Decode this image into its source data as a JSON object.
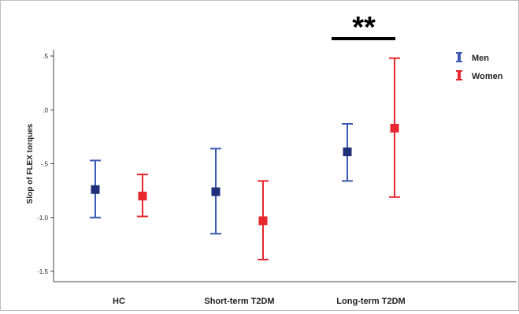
{
  "chart_data": {
    "type": "errorbar",
    "title": "",
    "xlabel": "",
    "ylabel": "Slop of FLEX torques",
    "ylim": [
      -1.5,
      0.5
    ],
    "yticks": [
      ".5",
      ".0",
      "-.5",
      "-1.0",
      "-1.5"
    ],
    "ytick_values": [
      0.5,
      0.0,
      -0.5,
      -1.0,
      -1.5
    ],
    "categories": [
      "HC",
      "Short-term T2DM",
      "Long-term T2DM"
    ],
    "legend_position": "top-right",
    "series": [
      {
        "name": "Men",
        "color": "#3b5bb3",
        "marker_color": "#1f2f7a",
        "mean": [
          -0.74,
          -0.76,
          -0.39
        ],
        "lower": [
          -1.0,
          -1.15,
          -0.66
        ],
        "upper": [
          -0.47,
          -0.36,
          -0.13
        ]
      },
      {
        "name": "Women",
        "color": "#e8262e",
        "marker_color": "#e8262e",
        "mean": [
          -0.8,
          -1.03,
          -0.17
        ],
        "lower": [
          -0.99,
          -1.39,
          -0.81
        ],
        "upper": [
          -0.6,
          -0.66,
          0.48
        ]
      }
    ],
    "annotations": [
      {
        "text": "**",
        "category": "Long-term T2DM"
      }
    ]
  }
}
